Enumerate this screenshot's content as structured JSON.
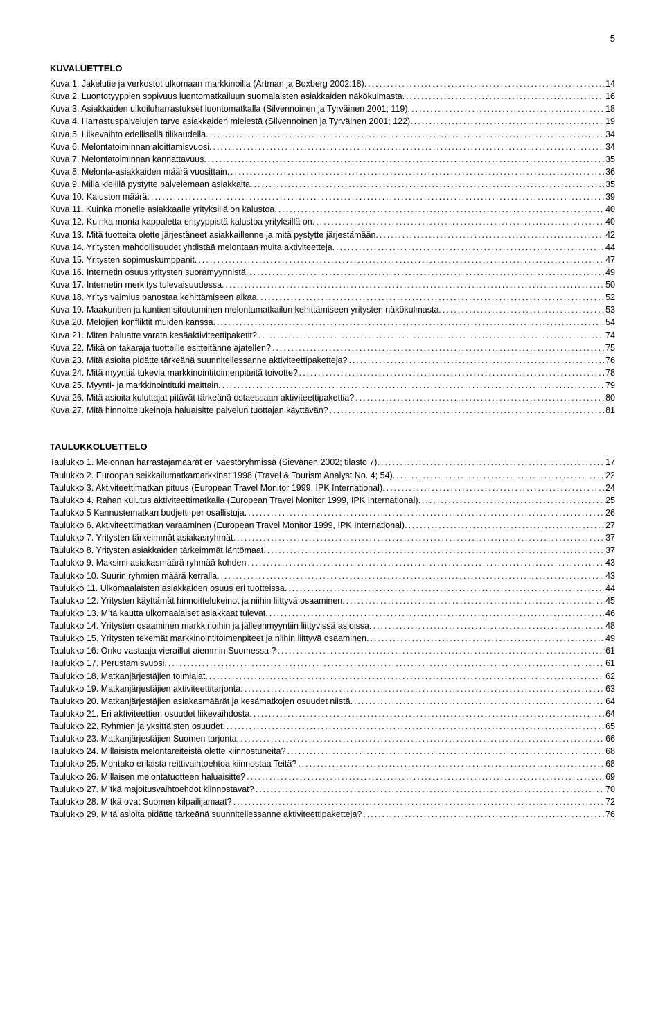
{
  "page_number": "5",
  "sections": [
    {
      "title": "KUVALUETTELO",
      "entries": [
        {
          "label": "Kuva 1. Jakelutie ja verkostot ulkomaan markkinoilla (Artman ja Boxberg 2002:18).",
          "page": "14"
        },
        {
          "label": "Kuva 2. Luontotyyppien sopivuus luontomatkailuun suomalaisten asiakkaiden näkökulmasta.",
          "page": "16"
        },
        {
          "label": "Kuva 3. Asiakkaiden ulkoiluharrastukset luontomatkalla (Silvennoinen ja Tyrväinen 2001; 119).",
          "page": "18"
        },
        {
          "label": "Kuva 4. Harrastuspalvelujen tarve asiakkaiden mielestä (Silvennoinen ja Tyrväinen 2001; 122).",
          "page": "19"
        },
        {
          "label": "Kuva 5. Liikevaihto edellisellä tilikaudella.",
          "page": "34"
        },
        {
          "label": "Kuva 6. Melontatoiminnan aloittamisvuosi.",
          "page": "34"
        },
        {
          "label": "Kuva 7. Melontatoiminnan kannattavuus.",
          "page": "35"
        },
        {
          "label": "Kuva 8. Melonta-asiakkaiden määrä vuosittain.",
          "page": "36"
        },
        {
          "label": "Kuva 9. Millä kielillä pystytte palvelemaan asiakkaita.",
          "page": "35"
        },
        {
          "label": "Kuva 10. Kaluston määrä.",
          "page": "39"
        },
        {
          "label": "Kuva 11. Kuinka monelle asiakkaalle yrityksillä on kalustoa.",
          "page": "40"
        },
        {
          "label": "Kuva 12. Kuinka monta kappaletta erityyppistä kalustoa yrityksillä on.",
          "page": "40"
        },
        {
          "label": "Kuva 13. Mitä tuotteita olette järjestäneet asiakkaillenne ja mitä pystytte järjestämään.",
          "page": "42"
        },
        {
          "label": "Kuva 14. Yritysten mahdollisuudet yhdistää melontaan muita aktiviteetteja.",
          "page": "44"
        },
        {
          "label": "Kuva 15. Yritysten sopimuskumppanit.",
          "page": "47"
        },
        {
          "label": "Kuva 16. Internetin osuus yritysten suoramyynnistä.",
          "page": "49"
        },
        {
          "label": "Kuva 17. Internetin merkitys tulevaisuudessa.",
          "page": "50"
        },
        {
          "label": "Kuva 18. Yritys valmius panostaa kehittämiseen aikaa.",
          "page": "52"
        },
        {
          "label": "Kuva 19. Maakuntien ja kuntien sitoutuminen melontamatkailun kehittämiseen yritysten näkökulmasta.",
          "page": "53"
        },
        {
          "label": "Kuva 20. Melojien konfliktit muiden kanssa.",
          "page": "54"
        },
        {
          "label": "Kuva 21. Miten haluatte varata kesäaktiviteettipaketit?",
          "page": "74"
        },
        {
          "label": "Kuva 22. Mikä on takaraja tuotteille esitteitänne ajatellen?",
          "page": "75"
        },
        {
          "label": "Kuva 23. Mitä asioita pidätte tärkeänä suunnitellessanne aktiviteettipaketteja?",
          "page": "76"
        },
        {
          "label": "Kuva 24. Mitä myyntiä tukevia markkinointitoimenpiteitä toivotte?",
          "page": "78"
        },
        {
          "label": "Kuva 25. Myynti- ja markkinointituki maittain.",
          "page": "79"
        },
        {
          "label": "Kuva 26. Mitä asioita kuluttajat pitävät tärkeänä ostaessaan aktiviteettipakettia?",
          "page": "80"
        },
        {
          "label": "Kuva 27. Mitä hinnoittelukeinoja haluaisitte palvelun tuottajan käyttävän?",
          "page": "81"
        }
      ]
    },
    {
      "title": "TAULUKKOLUETTELO",
      "entries": [
        {
          "label": "Taulukko 1. Melonnan harrastajamäärät eri väestöryhmissä (Sievänen 2002; tilasto 7).",
          "page": "17"
        },
        {
          "label": "Taulukko 2. Euroopan seikkailumatkamarkkinat 1998 (Travel & Tourism Analyst No. 4; 54).",
          "page": "22"
        },
        {
          "label": "Taulukko 3. Aktiviteettimatkan pituus (European Travel Monitor 1999, IPK International).",
          "page": "24"
        },
        {
          "label": "Taulukko 4. Rahan kulutus aktiviteettimatkalla (European Travel Monitor 1999, IPK International).",
          "page": "25"
        },
        {
          "label": "Taulukko 5  Kannustematkan budjetti per osallistuja.",
          "page": "26"
        },
        {
          "label": "Taulukko 6. Aktiviteettimatkan varaaminen (European Travel Monitor 1999, IPK International).",
          "page": "27"
        },
        {
          "label": "Taulukko 7. Yritysten tärkeimmät asiakasryhmät.",
          "page": "37"
        },
        {
          "label": "Taulukko 8. Yritysten asiakkaiden tärkeimmät lähtömaat.",
          "page": "37"
        },
        {
          "label": "Taulukko 9. Maksimi asiakasmäärä ryhmää kohden",
          "page": "43"
        },
        {
          "label": "Taulukko 10. Suurin ryhmien määrä kerralla.",
          "page": "43"
        },
        {
          "label": "Taulukko 11. Ulkomaalaisten asiakkaiden osuus eri tuotteissa.",
          "page": "44"
        },
        {
          "label": "Taulukko 12. Yritysten käyttämät hinnoittelukeinot ja niihin liittyvä osaaminen.",
          "page": "45"
        },
        {
          "label": "Taulukko 13. Mitä kautta ulkomaalaiset asiakkaat tulevat.",
          "page": "46"
        },
        {
          "label": "Taulukko 14. Yritysten osaaminen markkinoihin ja jälleenmyyntiin liittyvissä asioissa.",
          "page": "48"
        },
        {
          "label": "Taulukko 15. Yritysten tekemät markkinointitoimenpiteet ja niihin liittyvä osaaminen.",
          "page": "49"
        },
        {
          "label": "Taulukko 16. Onko vastaaja vieraillut aiemmin Suomessa ?",
          "page": "61"
        },
        {
          "label": "Taulukko 17. Perustamisvuosi.",
          "page": "61"
        },
        {
          "label": "Taulukko 18. Matkanjärjestäjien toimialat.",
          "page": "62"
        },
        {
          "label": "Taulukko 19. Matkanjärjestäjien aktiviteettitarjonta.",
          "page": "63"
        },
        {
          "label": "Taulukko 20. Matkanjärjestäjien asiakasmäärät ja kesämatkojen osuudet niistä.",
          "page": "64"
        },
        {
          "label": "Taulukko 21. Eri aktiviteettien osuudet liikevaihdosta.",
          "page": "64"
        },
        {
          "label": "Taulukko 22. Ryhmien ja yksittäisten osuudet.",
          "page": "65"
        },
        {
          "label": "Taulukko 23. Matkanjärjestäjien Suomen tarjonta.",
          "page": "66"
        },
        {
          "label": "Taulukko 24. Millaisista melontareiteistä olette kiinnostuneita?",
          "page": "68"
        },
        {
          "label": "Taulukko 25. Montako erilaista reittivaihtoehtoa kiinnostaa Teitä?",
          "page": "68"
        },
        {
          "label": "Taulukko 26. Millaisen melontatuotteen haluaisitte?",
          "page": "69"
        },
        {
          "label": "Taulukko 27. Mitkä majoitusvaihtoehdot kiinnostavat?",
          "page": "70"
        },
        {
          "label": "Taulukko 28. Mitkä ovat Suomen kilpailijamaat?",
          "page": "72"
        },
        {
          "label": "Taulukko 29. Mitä asioita pidätte tärkeänä suunnitellessanne aktiviteettipaketteja?",
          "page": "76"
        }
      ]
    }
  ]
}
